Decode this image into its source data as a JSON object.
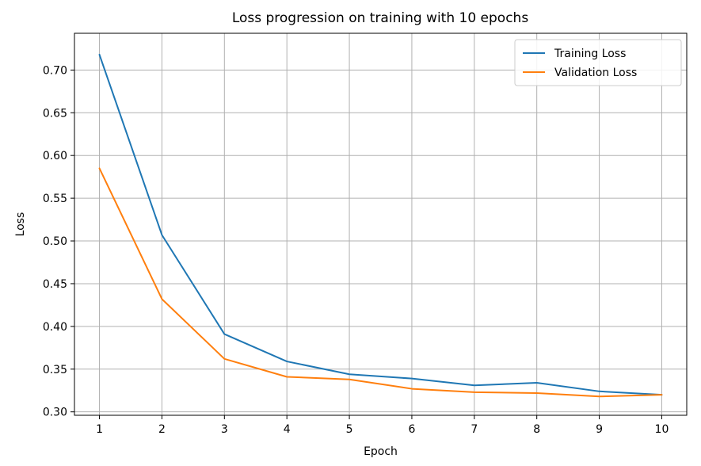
{
  "chart_data": {
    "type": "line",
    "title": "Loss progression on training with 10 epochs",
    "xlabel": "Epoch",
    "ylabel": "Loss",
    "x": [
      1,
      2,
      3,
      4,
      5,
      6,
      7,
      8,
      9,
      10
    ],
    "xlim": [
      0.6,
      10.4
    ],
    "ylim": [
      0.296,
      0.743
    ],
    "xticks": [
      1,
      2,
      3,
      4,
      5,
      6,
      7,
      8,
      9,
      10
    ],
    "yticks": [
      0.3,
      0.35,
      0.4,
      0.45,
      0.5,
      0.55,
      0.6,
      0.65,
      0.7
    ],
    "grid": true,
    "legend_position": "top-right",
    "series": [
      {
        "name": "Training Loss",
        "color": "#1f77b4",
        "values": [
          0.718,
          0.507,
          0.391,
          0.359,
          0.344,
          0.339,
          0.331,
          0.334,
          0.324,
          0.32
        ]
      },
      {
        "name": "Validation Loss",
        "color": "#ff7f0e",
        "values": [
          0.585,
          0.432,
          0.362,
          0.341,
          0.338,
          0.327,
          0.323,
          0.322,
          0.318,
          0.32
        ]
      }
    ]
  }
}
